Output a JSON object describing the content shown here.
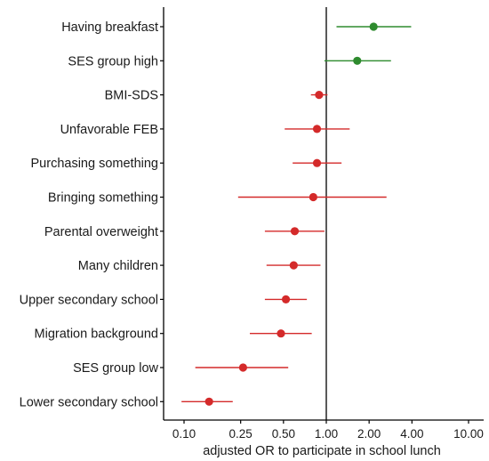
{
  "chart_data": {
    "type": "forest",
    "xlabel": "adjusted OR to participate in school lunch",
    "x_scale": "log",
    "xlim": [
      0.08,
      11
    ],
    "reference_value": 1.0,
    "x_ticks": [
      0.1,
      0.25,
      0.5,
      1.0,
      2.0,
      4.0,
      10.0
    ],
    "x_tick_labels": [
      "0.10",
      "0.25",
      "0.50",
      "1.00",
      "2.00",
      "4.00",
      "10.00"
    ],
    "grid": false,
    "colors": {
      "positive": "#2e8b2e",
      "negative": "#d42a2a",
      "axis": "#000000"
    },
    "rows": [
      {
        "label": "Having breakfast",
        "or": 2.15,
        "lo": 1.18,
        "hi": 3.95,
        "group": "positive"
      },
      {
        "label": "SES group high",
        "or": 1.65,
        "lo": 0.97,
        "hi": 2.85,
        "group": "positive"
      },
      {
        "label": "BMI-SDS",
        "or": 0.89,
        "lo": 0.78,
        "hi": 1.02,
        "group": "negative"
      },
      {
        "label": "Unfavorable FEB",
        "or": 0.86,
        "lo": 0.51,
        "hi": 1.46,
        "group": "negative"
      },
      {
        "label": "Purchasing something",
        "or": 0.86,
        "lo": 0.58,
        "hi": 1.28,
        "group": "negative"
      },
      {
        "label": "Bringing something",
        "or": 0.81,
        "lo": 0.24,
        "hi": 2.65,
        "group": "negative"
      },
      {
        "label": "Parental overweight",
        "or": 0.6,
        "lo": 0.37,
        "hi": 0.97,
        "group": "negative"
      },
      {
        "label": "Many children",
        "or": 0.59,
        "lo": 0.38,
        "hi": 0.91,
        "group": "negative"
      },
      {
        "label": "Upper secondary school",
        "or": 0.52,
        "lo": 0.37,
        "hi": 0.73,
        "group": "negative"
      },
      {
        "label": "Migration background",
        "or": 0.48,
        "lo": 0.29,
        "hi": 0.79,
        "group": "negative"
      },
      {
        "label": "SES group low",
        "or": 0.26,
        "lo": 0.12,
        "hi": 0.54,
        "group": "negative"
      },
      {
        "label": "Lower secondary school",
        "or": 0.15,
        "lo": 0.096,
        "hi": 0.22,
        "group": "negative"
      }
    ]
  }
}
